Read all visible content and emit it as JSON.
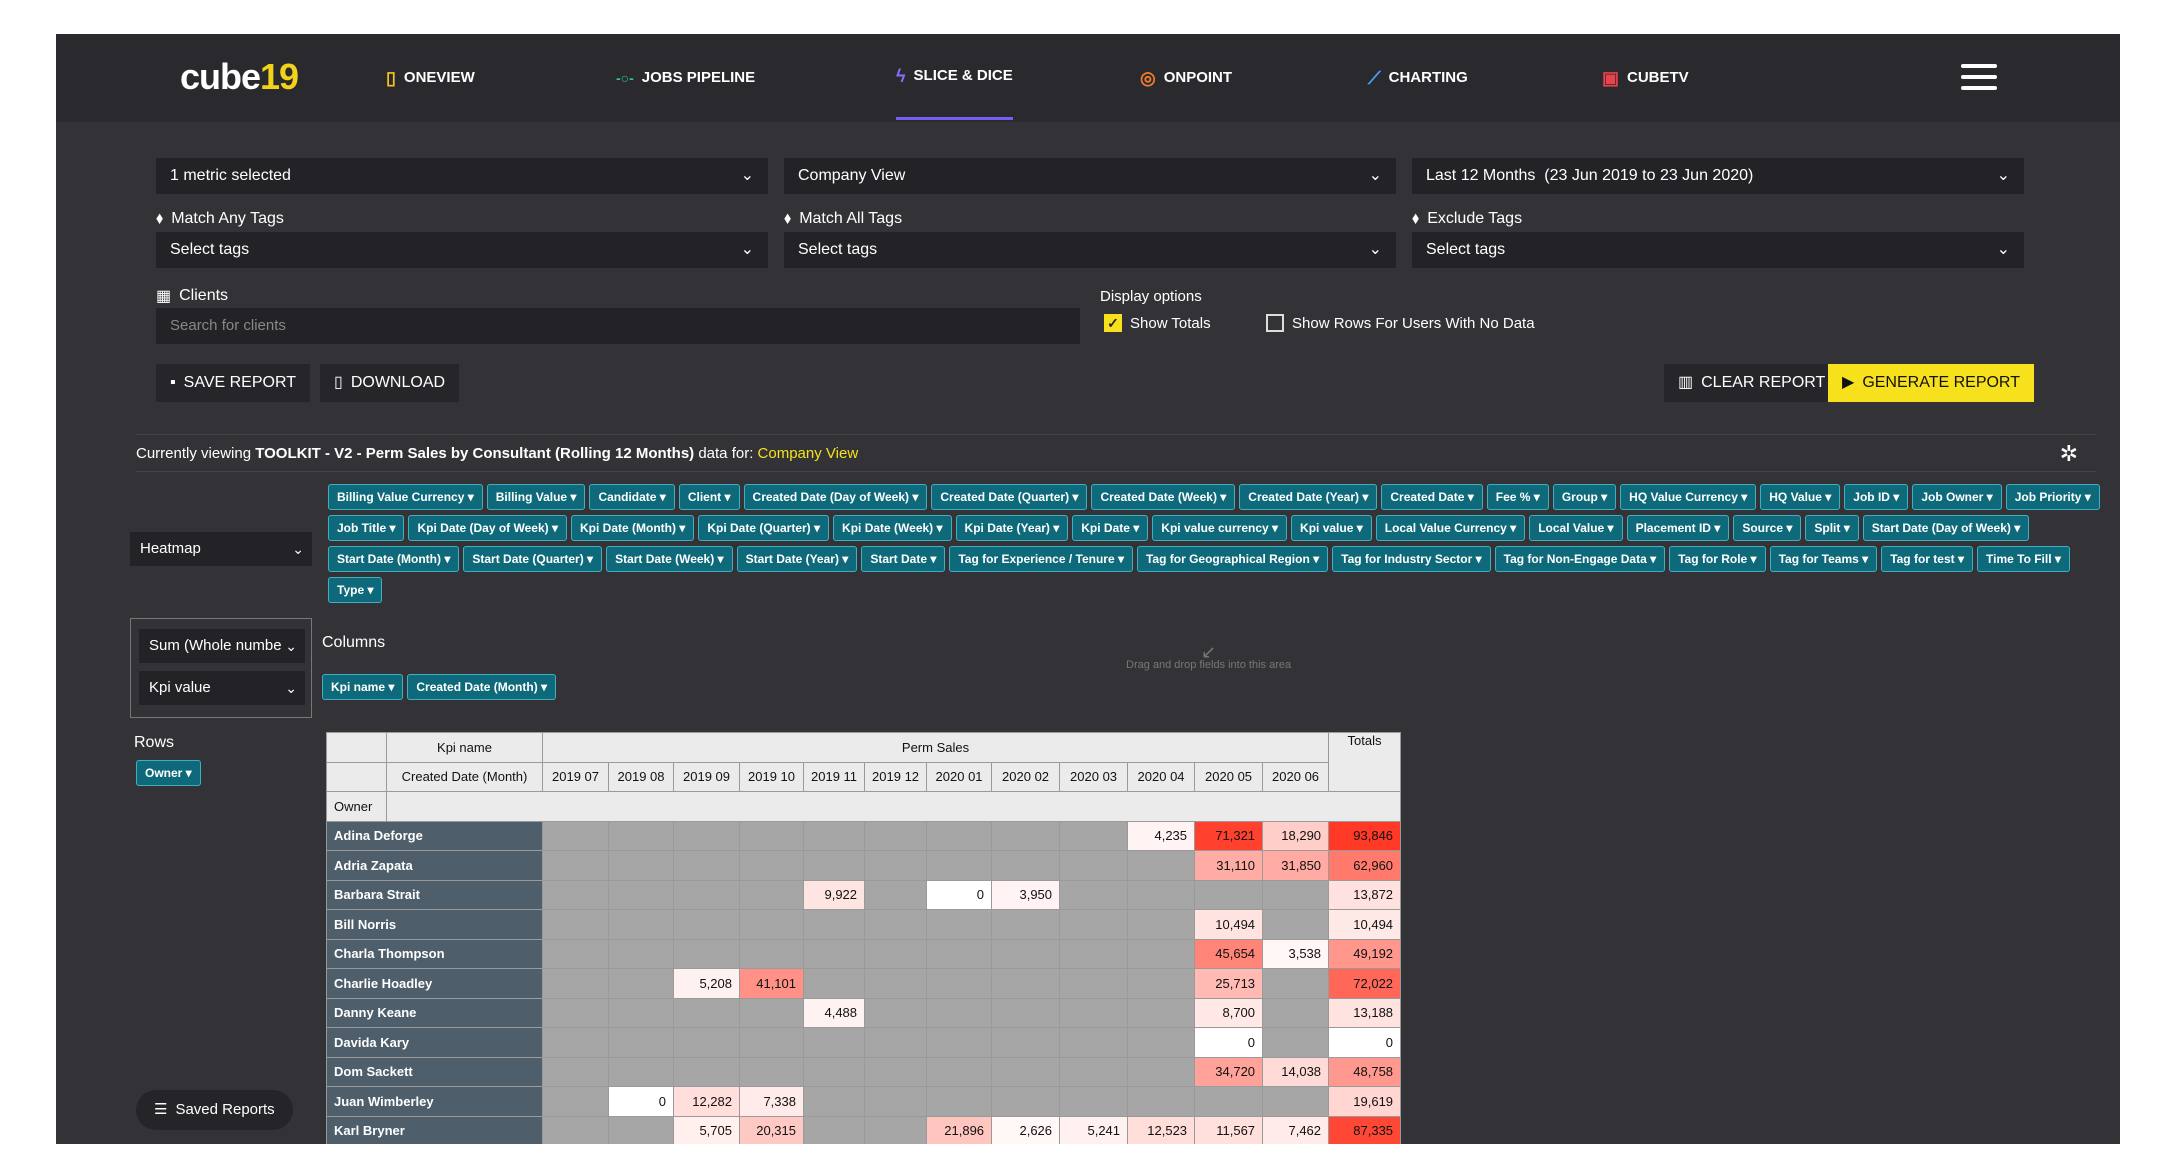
{
  "nav": {
    "logo": "cube",
    "logo_accent": "19",
    "items": [
      {
        "label": "ONEVIEW",
        "icon": "▯"
      },
      {
        "label": "JOBS PIPELINE",
        "icon": "-○-"
      },
      {
        "label": "SLICE & DICE",
        "icon": "ϟ"
      },
      {
        "label": "ONPOINT",
        "icon": "◎"
      },
      {
        "label": "CHARTING",
        "icon": "⟋"
      },
      {
        "label": "CUBETV",
        "icon": "▣"
      }
    ]
  },
  "filters": {
    "metric": "1 metric selected",
    "view": "Company View",
    "period": "Last 12 Months",
    "period_range": "(23 Jun 2019 to 23 Jun 2020)",
    "match_any_label": "Match Any Tags",
    "match_any_value": "Select tags",
    "match_all_label": "Match All Tags",
    "match_all_value": "Select tags",
    "exclude_label": "Exclude Tags",
    "exclude_value": "Select tags",
    "clients_label": "Clients",
    "clients_placeholder": "Search for clients",
    "display_label": "Display options",
    "show_totals": "Show Totals",
    "show_rows": "Show Rows For Users With No Data"
  },
  "actions": {
    "save": "SAVE REPORT",
    "download": "DOWNLOAD",
    "clear": "CLEAR REPORT",
    "generate": "GENERATE REPORT"
  },
  "viewing": {
    "prefix": "Currently viewing",
    "report": "TOOLKIT - V2 - Perm Sales by Consultant (Rolling 12 Months)",
    "mid": "data for:",
    "view": "Company View"
  },
  "renderer": "Heatmap",
  "aggregator": "Sum (Whole numbe",
  "aggregator_field": "Kpi value",
  "fields": [
    "Billing Value Currency",
    "Billing Value",
    "Candidate",
    "Client",
    "Created Date (Day of Week)",
    "Created Date (Quarter)",
    "Created Date (Week)",
    "Created Date (Year)",
    "Created Date",
    "Fee %",
    "Group",
    "HQ Value Currency",
    "HQ Value",
    "Job ID",
    "Job Owner",
    "Job Priority",
    "Job Title",
    "Kpi Date (Day of Week)",
    "Kpi Date (Month)",
    "Kpi Date (Quarter)",
    "Kpi Date (Week)",
    "Kpi Date (Year)",
    "Kpi Date",
    "Kpi value currency",
    "Kpi value",
    "Local Value Currency",
    "Local Value",
    "Placement ID",
    "Source",
    "Split",
    "Start Date (Day of Week)",
    "Start Date (Month)",
    "Start Date (Quarter)",
    "Start Date (Week)",
    "Start Date (Year)",
    "Start Date",
    "Tag for Experience / Tenure",
    "Tag for Geographical Region",
    "Tag for Industry Sector",
    "Tag for Non-Engage Data",
    "Tag for Role",
    "Tag for Teams",
    "Tag for test",
    "Time To Fill",
    "Type"
  ],
  "columns_label": "Columns",
  "column_fields": [
    "Kpi name",
    "Created Date (Month)"
  ],
  "rows_label": "Rows",
  "row_fields": [
    "Owner"
  ],
  "dropzone": "Drag and drop fields into this area",
  "saved_reports": "Saved Reports",
  "table": {
    "kpi_name_label": "Kpi name",
    "month_label": "Created Date (Month)",
    "owner_label": "Owner",
    "group": "Perm Sales",
    "totals_label": "Totals",
    "months": [
      "2019 07",
      "2019 08",
      "2019 09",
      "2019 10",
      "2019 11",
      "2019 12",
      "2020 01",
      "2020 02",
      "2020 03",
      "2020 04",
      "2020 05",
      "2020 06"
    ],
    "rows": [
      {
        "name": "Adina Deforge",
        "values": [
          "",
          "",
          "",
          "",
          "",
          "",
          "",
          "",
          "",
          "4,235",
          "71,321",
          "18,290"
        ],
        "total": "93,846"
      },
      {
        "name": "Adria Zapata",
        "values": [
          "",
          "",
          "",
          "",
          "",
          "",
          "",
          "",
          "",
          "",
          "31,110",
          "31,850"
        ],
        "total": "62,960"
      },
      {
        "name": "Barbara Strait",
        "values": [
          "",
          "",
          "",
          "",
          "9,922",
          "",
          "0",
          "3,950",
          "",
          "",
          "",
          ""
        ],
        "total": "13,872"
      },
      {
        "name": "Bill Norris",
        "values": [
          "",
          "",
          "",
          "",
          "",
          "",
          "",
          "",
          "",
          "",
          "10,494",
          ""
        ],
        "total": "10,494"
      },
      {
        "name": "Charla Thompson",
        "values": [
          "",
          "",
          "",
          "",
          "",
          "",
          "",
          "",
          "",
          "",
          "45,654",
          "3,538"
        ],
        "total": "49,192"
      },
      {
        "name": "Charlie Hoadley",
        "values": [
          "",
          "",
          "5,208",
          "41,101",
          "",
          "",
          "",
          "",
          "",
          "",
          "25,713",
          ""
        ],
        "total": "72,022"
      },
      {
        "name": "Danny Keane",
        "values": [
          "",
          "",
          "",
          "",
          "4,488",
          "",
          "",
          "",
          "",
          "",
          "8,700",
          ""
        ],
        "total": "13,188"
      },
      {
        "name": "Davida Kary",
        "values": [
          "",
          "",
          "",
          "",
          "",
          "",
          "",
          "",
          "",
          "",
          "0",
          ""
        ],
        "total": "0"
      },
      {
        "name": "Dom Sackett",
        "values": [
          "",
          "",
          "",
          "",
          "",
          "",
          "",
          "",
          "",
          "",
          "34,720",
          "14,038"
        ],
        "total": "48,758"
      },
      {
        "name": "Juan Wimberley",
        "values": [
          "",
          "0",
          "12,282",
          "7,338",
          "",
          "",
          "",
          "",
          "",
          "",
          "",
          ""
        ],
        "total": "19,619"
      },
      {
        "name": "Karl Bryner",
        "values": [
          "",
          "",
          "5,705",
          "20,315",
          "",
          "",
          "21,896",
          "2,626",
          "5,241",
          "12,523",
          "11,567",
          "7,462"
        ],
        "total": "87,335"
      }
    ]
  }
}
